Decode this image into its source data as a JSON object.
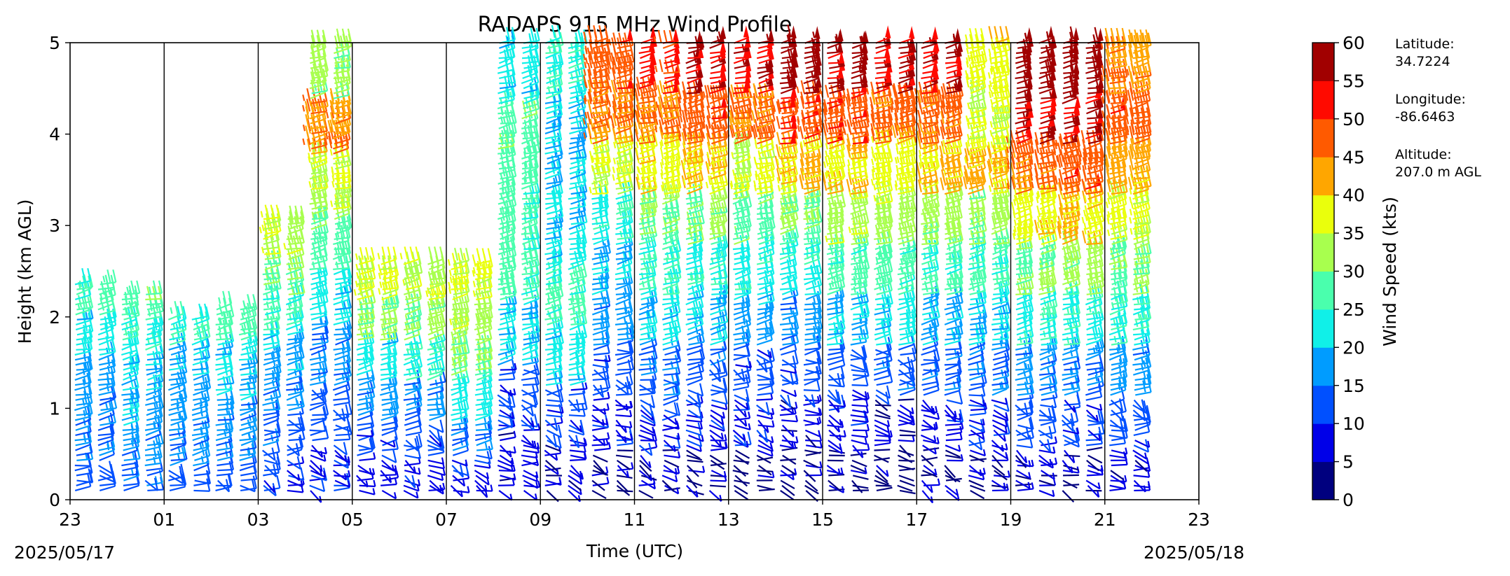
{
  "chart_data": {
    "type": "wind_barb_profile",
    "title": "RADAPS 915 MHz Wind Profile",
    "xlabel": "Time (UTC)",
    "ylabel": "Height (km AGL)",
    "x_tick_labels": [
      "23",
      "01",
      "03",
      "05",
      "07",
      "09",
      "11",
      "13",
      "15",
      "17",
      "19",
      "21",
      "23"
    ],
    "x_range_hours": [
      0,
      24
    ],
    "y_ticks": [
      0,
      1,
      2,
      3,
      4,
      5
    ],
    "ylim": [
      0,
      5
    ],
    "start_date": "2025/05/17",
    "end_date": "2025/05/18",
    "colorbar": {
      "label": "Wind Speed (kts)",
      "ticks": [
        0,
        5,
        10,
        15,
        20,
        25,
        30,
        35,
        40,
        45,
        50,
        55,
        60
      ],
      "colors": [
        "#00007f",
        "#0000e8",
        "#0050ff",
        "#009cff",
        "#10f0e8",
        "#4affad",
        "#a8ff4e",
        "#eaff0c",
        "#ffa600",
        "#ff5a00",
        "#ff0a00",
        "#a10000"
      ]
    },
    "station": {
      "latitude_label": "Latitude:",
      "latitude": "34.7224",
      "longitude_label": "Longitude:",
      "longitude": "-86.6463",
      "altitude_label": "Altitude:",
      "altitude": "207.0 m AGL"
    },
    "profiles": [
      {
        "hour": 0.0,
        "top_km": 2.4,
        "speeds": [
          12,
          14,
          16,
          18,
          22,
          27
        ]
      },
      {
        "hour": 1.0,
        "top_km": 2.3,
        "speeds": [
          14,
          17,
          18,
          20,
          24,
          28
        ]
      },
      {
        "hour": 2.0,
        "top_km": 2.0,
        "speeds": [
          13,
          15,
          16,
          17,
          19,
          24
        ]
      },
      {
        "hour": 3.0,
        "top_km": 2.1,
        "speeds": [
          13,
          16,
          17,
          20,
          22,
          27
        ]
      },
      {
        "hour": 4.0,
        "top_km": 3.1,
        "speeds": [
          10,
          13,
          16,
          19,
          24,
          30,
          34
        ]
      },
      {
        "hour": 5.0,
        "top_km": 5.0,
        "speeds": [
          9,
          12,
          16,
          22,
          28,
          34,
          45,
          32
        ]
      },
      {
        "hour": 6.0,
        "top_km": 2.6,
        "speeds": [
          8,
          12,
          16,
          22,
          30,
          36
        ]
      },
      {
        "hour": 7.0,
        "top_km": 2.6,
        "speeds": [
          8,
          11,
          16,
          24,
          31,
          34
        ]
      },
      {
        "hour": 8.0,
        "top_km": 2.6,
        "speeds": [
          9,
          14,
          22,
          30,
          33,
          36
        ]
      },
      {
        "hour": 9.0,
        "top_km": 5.0,
        "speeds": [
          7,
          11,
          20,
          27,
          27,
          28,
          22
        ]
      },
      {
        "hour": 10.0,
        "top_km": 5.0,
        "speeds": [
          6,
          11,
          22,
          27,
          21,
          20,
          20,
          24
        ]
      },
      {
        "hour": 11.0,
        "top_km": 5.0,
        "speeds": [
          4,
          8,
          12,
          17,
          20,
          24,
          35,
          45,
          48
        ]
      },
      {
        "hour": 12.0,
        "top_km": 5.0,
        "speeds": [
          5,
          10,
          14,
          20,
          25,
          30,
          38,
          45,
          52
        ]
      },
      {
        "hour": 13.0,
        "top_km": 5.0,
        "speeds": [
          4,
          9,
          13,
          19,
          24,
          30,
          40,
          48,
          56
        ]
      },
      {
        "hour": 14.0,
        "top_km": 5.0,
        "speeds": [
          3,
          8,
          12,
          18,
          23,
          28,
          36,
          46,
          54
        ]
      },
      {
        "hour": 15.0,
        "top_km": 5.0,
        "speeds": [
          3,
          7,
          12,
          17,
          24,
          30,
          40,
          50,
          60
        ]
      },
      {
        "hour": 16.0,
        "top_km": 5.0,
        "speeds": [
          4,
          8,
          12,
          20,
          27,
          34,
          40,
          50,
          56
        ]
      },
      {
        "hour": 17.0,
        "top_km": 5.0,
        "speeds": [
          3,
          6,
          13,
          22,
          27,
          33,
          38,
          46,
          55
        ]
      },
      {
        "hour": 18.0,
        "top_km": 5.0,
        "speeds": [
          4,
          9,
          14,
          20,
          26,
          32,
          40,
          46,
          55
        ]
      },
      {
        "hour": 19.0,
        "top_km": 5.0,
        "speeds": [
          5,
          10,
          14,
          20,
          26,
          32,
          40,
          35,
          38
        ]
      },
      {
        "hour": 20.0,
        "top_km": 5.0,
        "speeds": [
          6,
          12,
          16,
          24,
          30,
          38,
          46,
          55,
          60
        ]
      },
      {
        "hour": 21.0,
        "top_km": 5.0,
        "speeds": [
          5,
          11,
          16,
          24,
          32,
          40,
          48,
          56,
          62
        ]
      },
      {
        "hour": 22.0,
        "top_km": 5.0,
        "speeds": [
          7,
          12,
          17,
          24,
          30,
          36,
          42,
          48,
          44
        ]
      }
    ]
  }
}
